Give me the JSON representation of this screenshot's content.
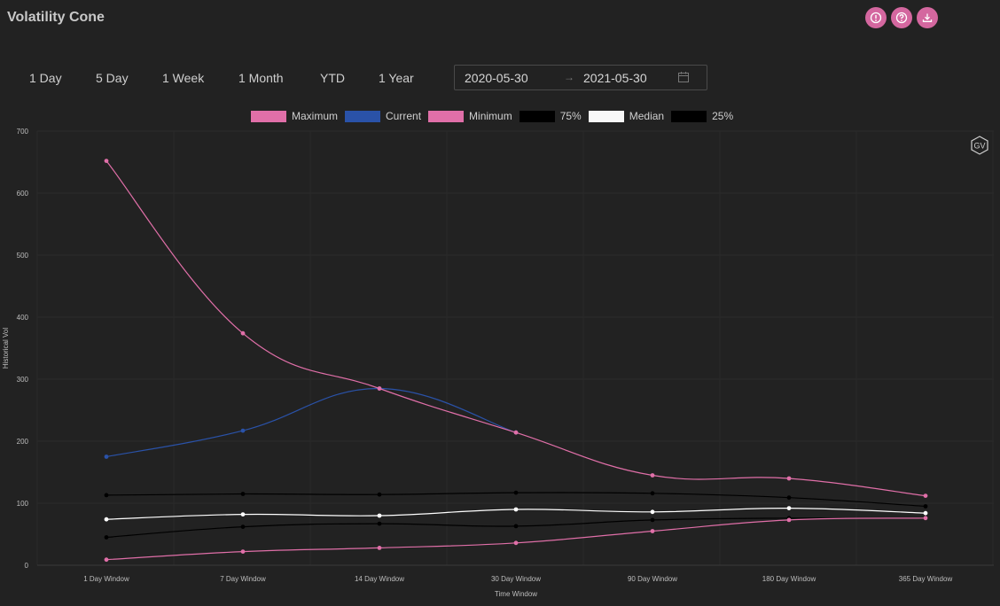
{
  "app": {
    "title": "Volatility Cone"
  },
  "header_icons": [
    {
      "name": "info-icon"
    },
    {
      "name": "help-icon"
    },
    {
      "name": "download-icon"
    }
  ],
  "range_tabs": [
    "1 Day",
    "5 Day",
    "1 Week",
    "1 Month",
    "YTD",
    "1 Year"
  ],
  "date_range": {
    "start": "2020-05-30",
    "separator": "→",
    "end": "2021-05-30",
    "icon": "calendar-icon"
  },
  "badge": {
    "text": "GV"
  },
  "colors": {
    "accent": "#d4679f",
    "current": "#2a52a8",
    "median": "#ffffff",
    "quartile": "#000000",
    "background": "#222222"
  },
  "chart_data": {
    "type": "line",
    "xlabel": "Time Window",
    "ylabel": "Historical Vol",
    "ylim": [
      0,
      700
    ],
    "yticks": [
      0,
      100,
      200,
      300,
      400,
      500,
      600,
      700
    ],
    "categories": [
      "1 Day Window",
      "7 Day Window",
      "14 Day Window",
      "30 Day Window",
      "90 Day Window",
      "180 Day Window",
      "365 Day Window"
    ],
    "legend_position": "top-center",
    "series": [
      {
        "name": "Maximum",
        "color": "#e06fa8",
        "values": [
          652,
          374,
          285,
          214,
          145,
          140,
          112
        ]
      },
      {
        "name": "Current",
        "color": "#2a52a8",
        "values": [
          175,
          217,
          285,
          214,
          null,
          null,
          null
        ]
      },
      {
        "name": "Minimum",
        "color": "#e06fa8",
        "values": [
          9,
          22,
          28,
          36,
          55,
          73,
          76
        ]
      },
      {
        "name": "75%",
        "color": "#000000",
        "values": [
          113,
          115,
          114,
          117,
          116,
          109,
          95
        ]
      },
      {
        "name": "Median",
        "color": "#ffffff",
        "values": [
          74,
          82,
          80,
          90,
          86,
          92,
          84
        ]
      },
      {
        "name": "25%",
        "color": "#000000",
        "values": [
          45,
          62,
          67,
          63,
          73,
          76,
          76
        ]
      }
    ]
  }
}
